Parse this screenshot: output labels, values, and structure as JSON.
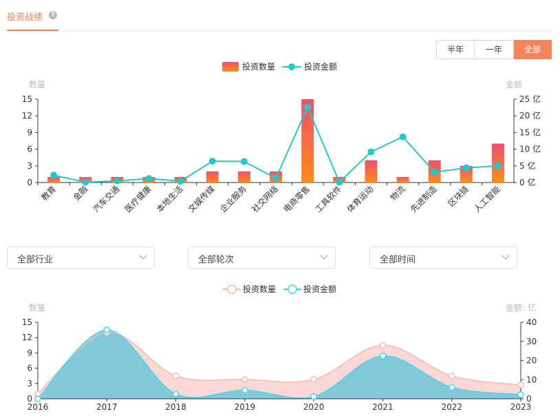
{
  "header": {
    "title": "投资战绩",
    "help_icon": "question-circle-icon"
  },
  "period": {
    "options": [
      "半年",
      "一年",
      "全部"
    ],
    "selected": "全部"
  },
  "filters": [
    {
      "label": "全部行业",
      "icon": "chevron-down-icon"
    },
    {
      "label": "全部轮次",
      "icon": "chevron-down-icon"
    },
    {
      "label": "全部时间",
      "icon": "chevron-down-icon"
    }
  ],
  "chart_data": [
    {
      "type": "bar",
      "legend": {
        "position": "top-center",
        "items": [
          "投资数量",
          "投资金额"
        ]
      },
      "y_left": {
        "label": "数量",
        "ticks": [
          "0",
          "3",
          "6",
          "9",
          "12",
          "15"
        ],
        "range": [
          0,
          15
        ]
      },
      "y_right": {
        "label": "金额",
        "ticks": [
          "0 亿",
          "5 亿",
          "10 亿",
          "15 亿",
          "20 亿",
          "25 亿"
        ],
        "range": [
          0,
          25
        ]
      },
      "categories": [
        "教育",
        "金融",
        "汽车交通",
        "医疗健康",
        "本地生活",
        "文娱传媒",
        "企业服务",
        "社交网络",
        "电商零售",
        "工具软件",
        "体育运动",
        "物流",
        "先进制造",
        "区块链",
        "人工智能"
      ],
      "series": [
        {
          "name": "投资数量",
          "type": "bar",
          "values": [
            1,
            1,
            1,
            1,
            1,
            2,
            2,
            2,
            15,
            1,
            4,
            1,
            4,
            3,
            7
          ],
          "color": "#f0506e"
        },
        {
          "name": "投资金额",
          "type": "line",
          "values": [
            2.2,
            0.1,
            0.5,
            1.2,
            0.4,
            6.4,
            6.3,
            1.3,
            22.6,
            0.1,
            9.2,
            13.7,
            3.1,
            4.4,
            5.0
          ],
          "color": "#26c6cf"
        }
      ],
      "grid": false
    },
    {
      "type": "area",
      "legend": {
        "position": "top-center",
        "items": [
          "投资数量",
          "投资金额"
        ]
      },
      "y_left": {
        "label": "数量",
        "ticks": [
          "0",
          "3",
          "6",
          "9",
          "12",
          "15"
        ],
        "range": [
          0,
          15
        ]
      },
      "y_right": {
        "label": "金额: 亿",
        "ticks": [
          "0",
          "10",
          "20",
          "30",
          "40"
        ],
        "range": [
          0,
          40
        ]
      },
      "x": [
        "2016",
        "2017",
        "2018",
        "2019",
        "2020",
        "2021",
        "2022",
        "2023"
      ],
      "series": [
        {
          "name": "投资数量",
          "values": [
            1,
            13,
            4.5,
            3.8,
            3.8,
            10.5,
            4.5,
            2.7
          ],
          "color": "#f8b9a8"
        },
        {
          "name": "投资金额",
          "values": [
            0,
            36,
            2.5,
            4.5,
            1.2,
            22.5,
            6,
            2.2
          ],
          "color": "#3fd8ec"
        }
      ],
      "grid": false
    }
  ]
}
